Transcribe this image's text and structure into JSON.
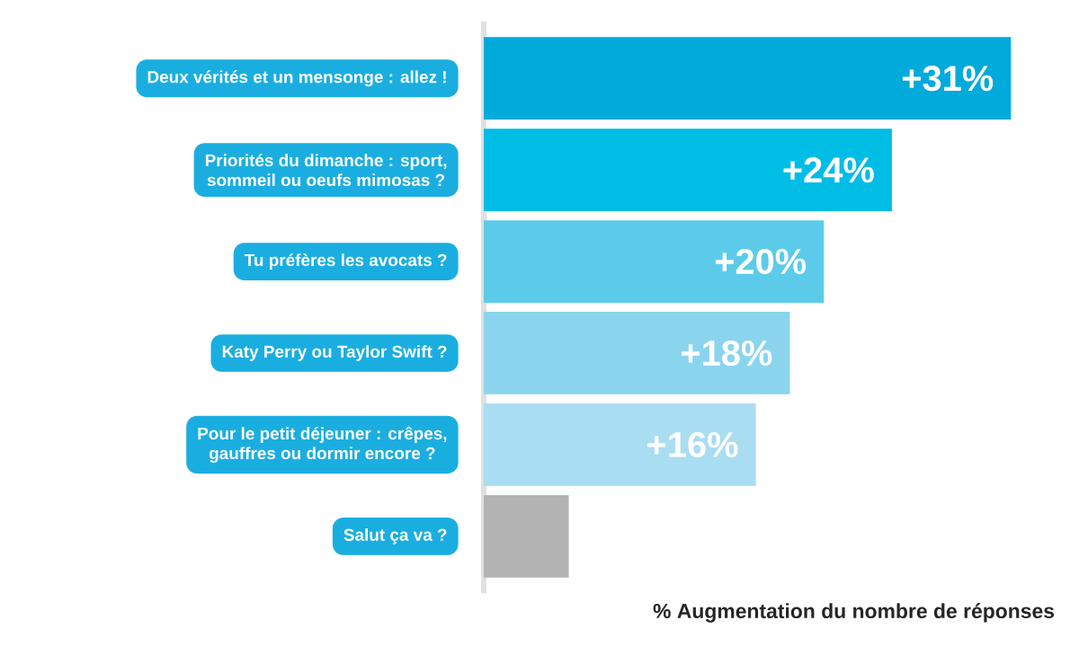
{
  "chart_data": {
    "type": "bar",
    "orientation": "horizontal",
    "categories": [
      "Deux vérités et un mensonge : allez !",
      "Priorités du dimanche : sport, sommeil ou oeufs mimosas ?",
      "Tu préfères les avocats ?",
      "Katy Perry ou Taylor Swift ?",
      "Pour le petit déjeuner : crêpes, gauffres ou dormir encore ?",
      "Salut ça va ?"
    ],
    "values": [
      31,
      24,
      20,
      18,
      16,
      5
    ],
    "colors": [
      "#00aadb",
      "#00bde6",
      "#5ccbea",
      "#8bd4ee",
      "#a9ddf1",
      "#b3b3b3"
    ],
    "value_labels": [
      "+31%",
      "+24%",
      "+20%",
      "+18%",
      "+16%",
      null
    ],
    "xlabel": "% Augmentation du nombre de réponses"
  }
}
